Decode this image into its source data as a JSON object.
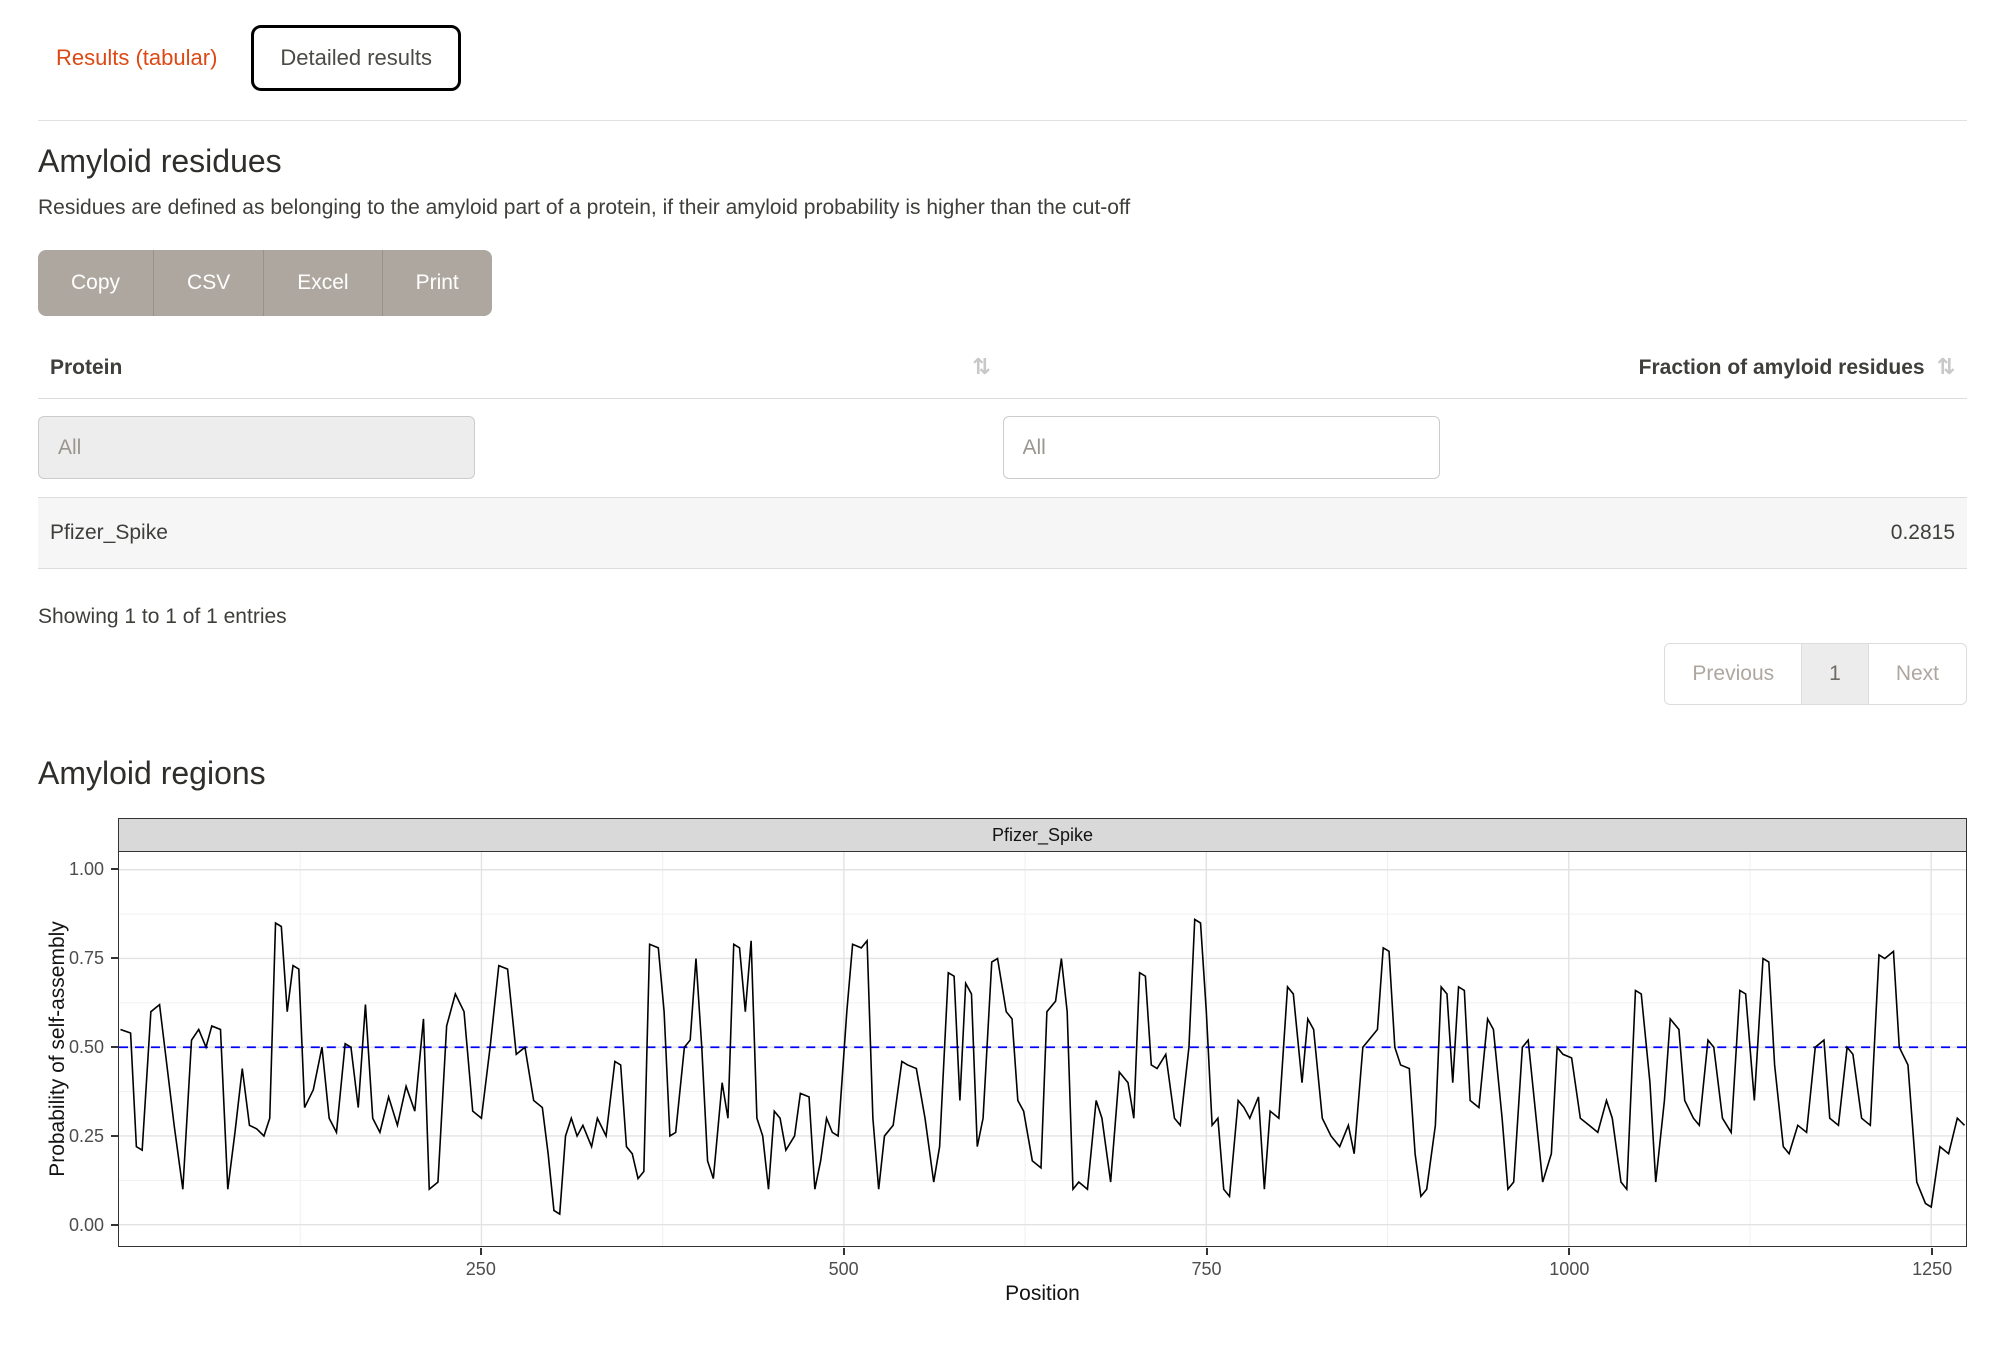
{
  "tabs": {
    "results_tabular": "Results (tabular)",
    "detailed_results": "Detailed results"
  },
  "residues": {
    "title": "Amyloid residues",
    "description": "Residues are defined as belonging to the amyloid part of a protein, if their amyloid probability is higher than the cut-off"
  },
  "buttons": {
    "copy": "Copy",
    "csv": "CSV",
    "excel": "Excel",
    "print": "Print"
  },
  "icons": {
    "sort": "⇅"
  },
  "table": {
    "columns": [
      "Protein",
      "Fraction of amyloid residues"
    ],
    "filter_placeholder": "All",
    "rows": [
      {
        "protein": "Pfizer_Spike",
        "fraction": "0.2815"
      }
    ],
    "info": "Showing 1 to 1 of 1 entries"
  },
  "pagination": {
    "previous": "Previous",
    "page": "1",
    "next": "Next"
  },
  "regions": {
    "title": "Amyloid regions"
  },
  "colors": {
    "accent": "#dd4814",
    "button_bg": "#aea79f",
    "cutoff_line": "#0000ff",
    "data_line": "#000000",
    "strip_bg": "#d9d9d9"
  },
  "chart_data": {
    "type": "line",
    "title": "Pfizer_Spike",
    "xlabel": "Position",
    "ylabel": "Probability of self-assembly",
    "xlim": [
      0,
      1274
    ],
    "ylim": [
      -0.06,
      1.05
    ],
    "x_ticks": [
      250,
      500,
      750,
      1000,
      1250
    ],
    "y_ticks": [
      0,
      0.25,
      0.5,
      0.75,
      1.0
    ],
    "y_tick_labels": [
      "0.00",
      "0.25",
      "0.50",
      "0.75",
      "1.00"
    ],
    "grid": true,
    "legend": "none",
    "cutoff": 0.5,
    "cutoff_color": "#0000ff",
    "line_color": "#000000",
    "points": [
      [
        1,
        0.55
      ],
      [
        8,
        0.54
      ],
      [
        12,
        0.22
      ],
      [
        16,
        0.21
      ],
      [
        22,
        0.6
      ],
      [
        28,
        0.62
      ],
      [
        33,
        0.45
      ],
      [
        38,
        0.28
      ],
      [
        44,
        0.1
      ],
      [
        50,
        0.52
      ],
      [
        55,
        0.55
      ],
      [
        60,
        0.5
      ],
      [
        64,
        0.56
      ],
      [
        70,
        0.55
      ],
      [
        75,
        0.1
      ],
      [
        80,
        0.26
      ],
      [
        85,
        0.44
      ],
      [
        90,
        0.28
      ],
      [
        95,
        0.27
      ],
      [
        100,
        0.25
      ],
      [
        104,
        0.3
      ],
      [
        108,
        0.85
      ],
      [
        112,
        0.84
      ],
      [
        116,
        0.6
      ],
      [
        120,
        0.73
      ],
      [
        124,
        0.72
      ],
      [
        128,
        0.33
      ],
      [
        134,
        0.38
      ],
      [
        140,
        0.5
      ],
      [
        145,
        0.3
      ],
      [
        150,
        0.26
      ],
      [
        156,
        0.51
      ],
      [
        160,
        0.5
      ],
      [
        165,
        0.33
      ],
      [
        170,
        0.62
      ],
      [
        175,
        0.3
      ],
      [
        180,
        0.26
      ],
      [
        186,
        0.36
      ],
      [
        192,
        0.28
      ],
      [
        198,
        0.39
      ],
      [
        204,
        0.32
      ],
      [
        210,
        0.58
      ],
      [
        214,
        0.1
      ],
      [
        220,
        0.12
      ],
      [
        226,
        0.56
      ],
      [
        232,
        0.65
      ],
      [
        238,
        0.6
      ],
      [
        244,
        0.32
      ],
      [
        250,
        0.3
      ],
      [
        256,
        0.5
      ],
      [
        262,
        0.73
      ],
      [
        268,
        0.72
      ],
      [
        274,
        0.48
      ],
      [
        280,
        0.5
      ],
      [
        286,
        0.35
      ],
      [
        292,
        0.33
      ],
      [
        296,
        0.2
      ],
      [
        300,
        0.04
      ],
      [
        304,
        0.03
      ],
      [
        308,
        0.25
      ],
      [
        312,
        0.3
      ],
      [
        316,
        0.25
      ],
      [
        320,
        0.28
      ],
      [
        326,
        0.22
      ],
      [
        330,
        0.3
      ],
      [
        336,
        0.25
      ],
      [
        342,
        0.46
      ],
      [
        346,
        0.45
      ],
      [
        350,
        0.22
      ],
      [
        354,
        0.2
      ],
      [
        358,
        0.13
      ],
      [
        362,
        0.15
      ],
      [
        366,
        0.79
      ],
      [
        372,
        0.78
      ],
      [
        376,
        0.6
      ],
      [
        380,
        0.25
      ],
      [
        384,
        0.26
      ],
      [
        390,
        0.5
      ],
      [
        394,
        0.52
      ],
      [
        398,
        0.75
      ],
      [
        402,
        0.5
      ],
      [
        406,
        0.18
      ],
      [
        410,
        0.13
      ],
      [
        416,
        0.4
      ],
      [
        420,
        0.3
      ],
      [
        424,
        0.79
      ],
      [
        428,
        0.78
      ],
      [
        432,
        0.6
      ],
      [
        436,
        0.8
      ],
      [
        440,
        0.3
      ],
      [
        444,
        0.25
      ],
      [
        448,
        0.1
      ],
      [
        452,
        0.32
      ],
      [
        456,
        0.3
      ],
      [
        460,
        0.21
      ],
      [
        466,
        0.25
      ],
      [
        470,
        0.37
      ],
      [
        476,
        0.36
      ],
      [
        480,
        0.1
      ],
      [
        484,
        0.18
      ],
      [
        488,
        0.3
      ],
      [
        492,
        0.26
      ],
      [
        496,
        0.25
      ],
      [
        502,
        0.6
      ],
      [
        506,
        0.79
      ],
      [
        512,
        0.78
      ],
      [
        516,
        0.8
      ],
      [
        520,
        0.3
      ],
      [
        524,
        0.1
      ],
      [
        528,
        0.25
      ],
      [
        534,
        0.28
      ],
      [
        540,
        0.46
      ],
      [
        544,
        0.45
      ],
      [
        550,
        0.44
      ],
      [
        556,
        0.3
      ],
      [
        562,
        0.12
      ],
      [
        566,
        0.22
      ],
      [
        572,
        0.71
      ],
      [
        576,
        0.7
      ],
      [
        580,
        0.35
      ],
      [
        584,
        0.68
      ],
      [
        588,
        0.65
      ],
      [
        592,
        0.22
      ],
      [
        596,
        0.3
      ],
      [
        602,
        0.74
      ],
      [
        606,
        0.75
      ],
      [
        612,
        0.6
      ],
      [
        616,
        0.58
      ],
      [
        620,
        0.35
      ],
      [
        624,
        0.32
      ],
      [
        630,
        0.18
      ],
      [
        636,
        0.16
      ],
      [
        640,
        0.6
      ],
      [
        646,
        0.63
      ],
      [
        650,
        0.75
      ],
      [
        654,
        0.6
      ],
      [
        658,
        0.1
      ],
      [
        662,
        0.12
      ],
      [
        668,
        0.1
      ],
      [
        674,
        0.35
      ],
      [
        678,
        0.3
      ],
      [
        684,
        0.12
      ],
      [
        690,
        0.43
      ],
      [
        696,
        0.4
      ],
      [
        700,
        0.3
      ],
      [
        704,
        0.71
      ],
      [
        708,
        0.7
      ],
      [
        712,
        0.45
      ],
      [
        716,
        0.44
      ],
      [
        722,
        0.48
      ],
      [
        728,
        0.3
      ],
      [
        732,
        0.28
      ],
      [
        738,
        0.5
      ],
      [
        742,
        0.86
      ],
      [
        746,
        0.85
      ],
      [
        750,
        0.6
      ],
      [
        754,
        0.28
      ],
      [
        758,
        0.3
      ],
      [
        762,
        0.1
      ],
      [
        766,
        0.08
      ],
      [
        772,
        0.35
      ],
      [
        776,
        0.33
      ],
      [
        780,
        0.3
      ],
      [
        786,
        0.36
      ],
      [
        790,
        0.1
      ],
      [
        794,
        0.32
      ],
      [
        800,
        0.3
      ],
      [
        806,
        0.67
      ],
      [
        810,
        0.65
      ],
      [
        816,
        0.4
      ],
      [
        820,
        0.58
      ],
      [
        824,
        0.55
      ],
      [
        830,
        0.3
      ],
      [
        836,
        0.25
      ],
      [
        842,
        0.22
      ],
      [
        848,
        0.28
      ],
      [
        852,
        0.2
      ],
      [
        858,
        0.5
      ],
      [
        862,
        0.52
      ],
      [
        868,
        0.55
      ],
      [
        872,
        0.78
      ],
      [
        876,
        0.77
      ],
      [
        880,
        0.5
      ],
      [
        884,
        0.45
      ],
      [
        890,
        0.44
      ],
      [
        894,
        0.2
      ],
      [
        898,
        0.08
      ],
      [
        902,
        0.1
      ],
      [
        908,
        0.28
      ],
      [
        912,
        0.67
      ],
      [
        916,
        0.65
      ],
      [
        920,
        0.4
      ],
      [
        924,
        0.67
      ],
      [
        928,
        0.66
      ],
      [
        932,
        0.35
      ],
      [
        938,
        0.33
      ],
      [
        944,
        0.58
      ],
      [
        948,
        0.55
      ],
      [
        954,
        0.3
      ],
      [
        958,
        0.1
      ],
      [
        962,
        0.12
      ],
      [
        968,
        0.5
      ],
      [
        972,
        0.52
      ],
      [
        978,
        0.28
      ],
      [
        982,
        0.12
      ],
      [
        988,
        0.2
      ],
      [
        992,
        0.5
      ],
      [
        996,
        0.48
      ],
      [
        1002,
        0.47
      ],
      [
        1008,
        0.3
      ],
      [
        1014,
        0.28
      ],
      [
        1020,
        0.26
      ],
      [
        1026,
        0.35
      ],
      [
        1030,
        0.3
      ],
      [
        1036,
        0.12
      ],
      [
        1040,
        0.1
      ],
      [
        1046,
        0.66
      ],
      [
        1050,
        0.65
      ],
      [
        1056,
        0.4
      ],
      [
        1060,
        0.12
      ],
      [
        1066,
        0.35
      ],
      [
        1070,
        0.58
      ],
      [
        1076,
        0.55
      ],
      [
        1080,
        0.35
      ],
      [
        1086,
        0.3
      ],
      [
        1090,
        0.28
      ],
      [
        1096,
        0.52
      ],
      [
        1100,
        0.5
      ],
      [
        1106,
        0.3
      ],
      [
        1112,
        0.26
      ],
      [
        1118,
        0.66
      ],
      [
        1122,
        0.65
      ],
      [
        1128,
        0.35
      ],
      [
        1134,
        0.75
      ],
      [
        1138,
        0.74
      ],
      [
        1142,
        0.45
      ],
      [
        1148,
        0.22
      ],
      [
        1152,
        0.2
      ],
      [
        1158,
        0.28
      ],
      [
        1164,
        0.26
      ],
      [
        1170,
        0.5
      ],
      [
        1176,
        0.52
      ],
      [
        1180,
        0.3
      ],
      [
        1186,
        0.28
      ],
      [
        1192,
        0.5
      ],
      [
        1196,
        0.48
      ],
      [
        1202,
        0.3
      ],
      [
        1208,
        0.28
      ],
      [
        1214,
        0.76
      ],
      [
        1218,
        0.75
      ],
      [
        1224,
        0.77
      ],
      [
        1228,
        0.5
      ],
      [
        1234,
        0.45
      ],
      [
        1240,
        0.12
      ],
      [
        1246,
        0.06
      ],
      [
        1250,
        0.05
      ],
      [
        1256,
        0.22
      ],
      [
        1262,
        0.2
      ],
      [
        1268,
        0.3
      ],
      [
        1273,
        0.28
      ]
    ]
  }
}
